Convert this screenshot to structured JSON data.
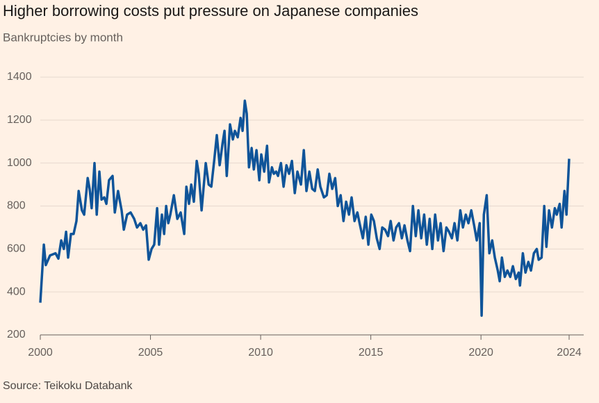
{
  "chart_data": {
    "type": "line",
    "title": "Higher borrowing costs put pressure on Japanese companies",
    "subtitle": "Bankruptcies by month",
    "source": "Source: Teikoku Databank",
    "color": "#0f5499",
    "grid": true,
    "xlim": [
      2000,
      2024
    ],
    "xticks": [
      2000,
      2005,
      2010,
      2015,
      2020,
      2024
    ],
    "ylim": [
      200,
      1400
    ],
    "yticks": [
      200,
      400,
      600,
      800,
      1000,
      1200,
      1400
    ],
    "x": [
      2000,
      2000.16,
      2000.25,
      2000.44,
      2000.69,
      2000.82,
      2000.95,
      2001.07,
      2001.17,
      2001.26,
      2001.39,
      2001.51,
      2001.64,
      2001.74,
      2001.89,
      2001.99,
      2002.15,
      2002.24,
      2002.33,
      2002.46,
      2002.56,
      2002.68,
      2002.78,
      2002.9,
      2003.0,
      2003.12,
      2003.28,
      2003.38,
      2003.53,
      2003.69,
      2003.79,
      2003.94,
      2004.1,
      2004.26,
      2004.39,
      2004.54,
      2004.67,
      2004.8,
      2004.92,
      2005.05,
      2005.17,
      2005.3,
      2005.39,
      2005.52,
      2005.62,
      2005.71,
      2005.81,
      2005.9,
      2006.06,
      2006.22,
      2006.37,
      2006.53,
      2006.63,
      2006.75,
      2006.85,
      2006.97,
      2007.1,
      2007.19,
      2007.32,
      2007.51,
      2007.64,
      2007.76,
      2007.89,
      2008.01,
      2008.14,
      2008.27,
      2008.36,
      2008.46,
      2008.61,
      2008.74,
      2008.83,
      2008.96,
      2009.09,
      2009.18,
      2009.28,
      2009.37,
      2009.47,
      2009.59,
      2009.69,
      2009.81,
      2009.94,
      2010.03,
      2010.16,
      2010.29,
      2010.38,
      2010.51,
      2010.6,
      2010.7,
      2010.79,
      2010.92,
      2011.04,
      2011.17,
      2011.29,
      2011.42,
      2011.55,
      2011.67,
      2011.83,
      2011.96,
      2012.08,
      2012.21,
      2012.34,
      2012.46,
      2012.59,
      2012.71,
      2012.87,
      2013.0,
      2013.12,
      2013.25,
      2013.38,
      2013.5,
      2013.63,
      2013.76,
      2013.88,
      2014.01,
      2014.13,
      2014.26,
      2014.39,
      2014.51,
      2014.64,
      2014.77,
      2014.89,
      2015.02,
      2015.14,
      2015.27,
      2015.4,
      2015.52,
      2015.65,
      2015.78,
      2015.9,
      2016.03,
      2016.15,
      2016.28,
      2016.41,
      2016.53,
      2016.66,
      2016.78,
      2016.91,
      2017.04,
      2017.16,
      2017.29,
      2017.42,
      2017.54,
      2017.67,
      2017.79,
      2017.92,
      2018.05,
      2018.17,
      2018.3,
      2018.43,
      2018.55,
      2018.68,
      2018.8,
      2018.93,
      2019.06,
      2019.18,
      2019.31,
      2019.43,
      2019.56,
      2019.69,
      2019.81,
      2019.94,
      2020.03,
      2020.13,
      2020.26,
      2020.38,
      2020.51,
      2020.63,
      2020.76,
      2020.85,
      2020.95,
      2021.08,
      2021.2,
      2021.33,
      2021.45,
      2021.58,
      2021.71,
      2021.77,
      2021.9,
      2022.02,
      2022.15,
      2022.27,
      2022.4,
      2022.53,
      2022.62,
      2022.75,
      2022.87,
      2022.97,
      2023.09,
      2023.22,
      2023.35,
      2023.44,
      2023.57,
      2023.66,
      2023.79,
      2023.88,
      2024.0
    ],
    "values": [
      350,
      620,
      525,
      570,
      580,
      555,
      640,
      600,
      680,
      560,
      670,
      670,
      730,
      870,
      780,
      760,
      930,
      880,
      790,
      1000,
      760,
      960,
      830,
      840,
      810,
      920,
      940,
      770,
      870,
      780,
      690,
      760,
      770,
      740,
      700,
      720,
      690,
      710,
      550,
      600,
      620,
      790,
      620,
      760,
      670,
      800,
      720,
      760,
      850,
      740,
      770,
      670,
      890,
      810,
      900,
      820,
      1010,
      950,
      780,
      1000,
      900,
      890,
      1010,
      1130,
      990,
      1090,
      1150,
      940,
      1180,
      1110,
      1150,
      1120,
      1210,
      1150,
      1290,
      1230,
      980,
      1070,
      970,
      1060,
      920,
      1040,
      960,
      1080,
      910,
      980,
      950,
      960,
      940,
      1000,
      890,
      990,
      950,
      1010,
      860,
      960,
      900,
      1060,
      870,
      960,
      880,
      870,
      970,
      890,
      840,
      850,
      950,
      880,
      930,
      800,
      850,
      730,
      820,
      760,
      840,
      730,
      770,
      710,
      650,
      750,
      620,
      760,
      730,
      650,
      600,
      700,
      690,
      660,
      730,
      640,
      700,
      720,
      650,
      710,
      640,
      590,
      800,
      660,
      780,
      650,
      760,
      620,
      740,
      600,
      760,
      640,
      720,
      590,
      700,
      680,
      650,
      720,
      640,
      780,
      700,
      760,
      720,
      780,
      710,
      640,
      720,
      290,
      760,
      850,
      580,
      640,
      560,
      500,
      450,
      560,
      470,
      500,
      470,
      520,
      460,
      490,
      430,
      580,
      490,
      540,
      500,
      580,
      600,
      550,
      560,
      800,
      610,
      780,
      700,
      790,
      760,
      810,
      700,
      870,
      760,
      1020
    ]
  }
}
